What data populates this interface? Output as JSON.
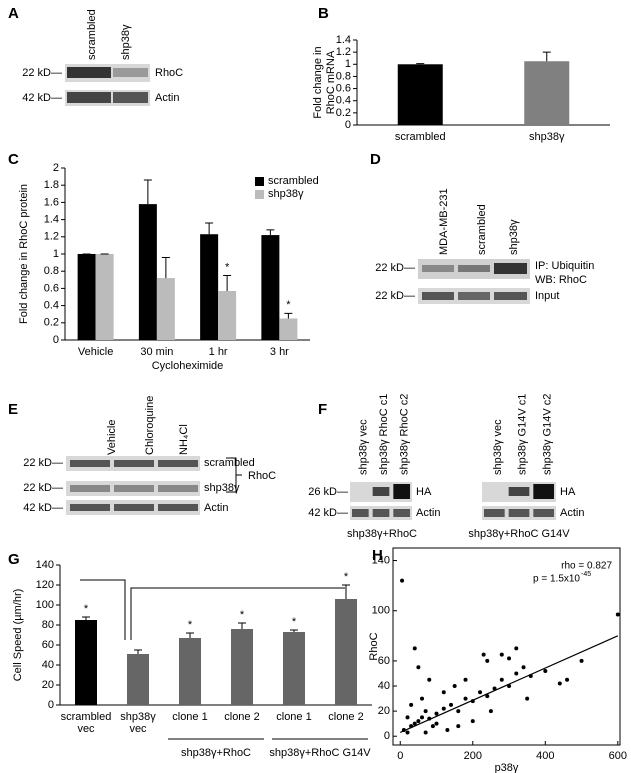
{
  "panel_labels": [
    "A",
    "B",
    "C",
    "D",
    "E",
    "F",
    "G",
    "H"
  ],
  "blots": {
    "A": {
      "lanes": [
        "scrambled",
        "shp38γ"
      ],
      "markers": [
        "22 kD—",
        "42 kD—"
      ],
      "rows": [
        "RhoC",
        "Actin"
      ]
    },
    "D": {
      "lanes": [
        "MDA-MB-231",
        "scrambled",
        "shp38γ"
      ],
      "markers": [
        "22 kD—",
        "22 kD—"
      ],
      "rows": [
        "IP: Ubiquitin",
        "WB: RhoC",
        "Input"
      ]
    },
    "E": {
      "lanes": [
        "Vehicle",
        "Chloroquine",
        "NH₄Cl"
      ],
      "markers": [
        "22 kD—",
        "22 kD—",
        "42 kD—"
      ],
      "rows": [
        "scrambled",
        "shp38γ",
        "Actin"
      ],
      "bracket": "RhoC"
    },
    "F": {
      "markers": [
        "26 kD—",
        "42 kD—"
      ],
      "blots": [
        {
          "lanes": [
            "shp38γ vec",
            "shp38γ RhoC c1",
            "shp38γ RhoC c2"
          ],
          "rows": [
            "HA",
            "Actin"
          ],
          "caption": "shp38γ+RhoC"
        },
        {
          "lanes": [
            "shp38γ vec",
            "shp38γ G14V c1",
            "shp38γ G14V c2"
          ],
          "rows": [
            "HA",
            "Actin"
          ],
          "caption": "shp38γ+RhoC G14V"
        }
      ]
    }
  },
  "chart_data": [
    {
      "type": "bar",
      "ylabel": [
        "Fold change in",
        "RhoC mRNA"
      ],
      "categories": [
        "scrambled",
        "shp38γ"
      ],
      "values": [
        1,
        1.05
      ],
      "errors": [
        0.01,
        0.15
      ],
      "colors": [
        "#000000",
        "#808080"
      ],
      "ylim": [
        0,
        1.4
      ],
      "yticks": [
        0,
        0.2,
        0.4,
        0.6,
        0.8,
        1,
        1.2,
        1.4
      ]
    },
    {
      "type": "grouped_bar",
      "ylabel": "Fold change in RhoC protein",
      "xlabel": "Cycloheximide",
      "categories": [
        "Vehicle",
        "30 min",
        "1 hr",
        "3 hr"
      ],
      "series": [
        {
          "name": "scrambled",
          "color": "#000000",
          "values": [
            1,
            1.58,
            1.23,
            1.22
          ],
          "errors": [
            0,
            0.28,
            0.13,
            0.06
          ]
        },
        {
          "name": "shp38γ",
          "color": "#bbbbbb",
          "values": [
            1,
            0.72,
            0.57,
            0.25
          ],
          "errors": [
            0,
            0.24,
            0.18,
            0.06
          ],
          "significance": [
            null,
            null,
            "*",
            "*"
          ]
        }
      ],
      "ylim": [
        0,
        2
      ],
      "yticks": [
        0,
        0.2,
        0.4,
        0.6,
        0.8,
        1,
        1.2,
        1.4,
        1.6,
        1.8,
        2
      ]
    },
    {
      "type": "bar",
      "ylabel": "Cell Speed (µm/hr)",
      "categories": [
        [
          "scrambled",
          "vec"
        ],
        [
          "shp38γ",
          "vec"
        ],
        [
          "clone 1"
        ],
        [
          "clone 2"
        ],
        [
          "clone 1"
        ],
        [
          "clone 2"
        ]
      ],
      "groups": [
        {
          "label": "shp38γ+RhoC",
          "categories": [
            2,
            3
          ]
        },
        {
          "label": "shp38γ+RhoC G14V",
          "categories": [
            4,
            5
          ]
        }
      ],
      "values": [
        85,
        51,
        67,
        76,
        73,
        106
      ],
      "errors": [
        3,
        4,
        5,
        6,
        2,
        14
      ],
      "colors": [
        "#000000",
        "#666666",
        "#666666",
        "#666666",
        "#666666",
        "#666666"
      ],
      "significance": [
        "*",
        null,
        "*",
        "*",
        "*",
        "*"
      ],
      "ylim": [
        0,
        140
      ],
      "yticks": [
        0,
        20,
        40,
        60,
        80,
        100,
        120,
        140
      ]
    },
    {
      "type": "scatter",
      "xlabel": "p38γ",
      "ylabel": "RhoC",
      "rho": "rho = 0.827",
      "p_label": "p = 1.5x10",
      "p_exp": "-45",
      "x": [
        5,
        600,
        20,
        10,
        30,
        40,
        50,
        60,
        70,
        80,
        100,
        120,
        140,
        160,
        180,
        200,
        220,
        240,
        260,
        280,
        300,
        320,
        340,
        360,
        400,
        440,
        460,
        500,
        280,
        300,
        320,
        230,
        240,
        150,
        120,
        80,
        50,
        40,
        60,
        30,
        20,
        100,
        130,
        90,
        250,
        200,
        350,
        180,
        160,
        70
      ],
      "y": [
        124,
        97,
        3,
        5,
        8,
        10,
        12,
        15,
        20,
        14,
        18,
        22,
        25,
        20,
        30,
        28,
        35,
        32,
        38,
        45,
        40,
        50,
        55,
        48,
        52,
        42,
        45,
        60,
        65,
        62,
        70,
        65,
        60,
        40,
        35,
        45,
        55,
        70,
        30,
        25,
        15,
        10,
        5,
        8,
        20,
        12,
        30,
        45,
        8,
        3
      ],
      "fit": {
        "x": [
          0,
          600
        ],
        "y": [
          3,
          80
        ]
      },
      "color": "#000000",
      "xlim": [
        -20,
        606
      ],
      "ylim": [
        -7,
        150
      ],
      "xticks": [
        0,
        200,
        400,
        600
      ],
      "yticks": [
        0,
        20,
        40,
        60,
        100,
        140
      ]
    }
  ]
}
